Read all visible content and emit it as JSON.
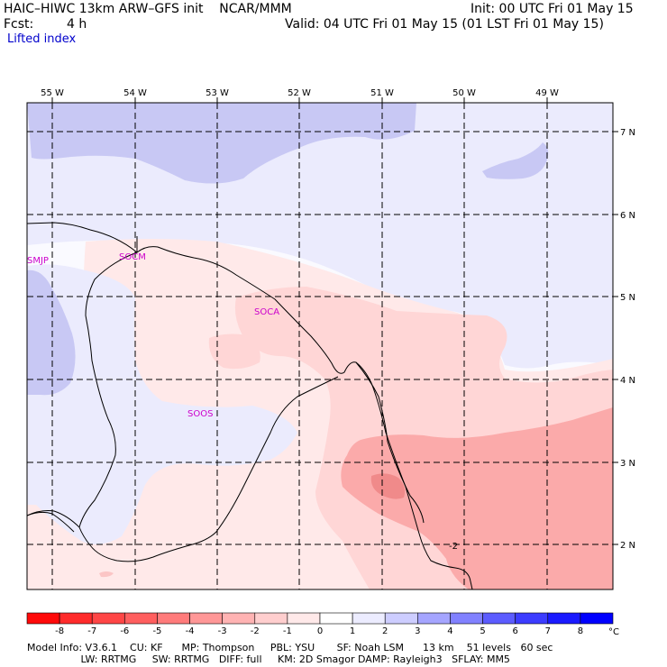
{
  "header": {
    "title": "HAIC–HIWC 13km ARW–GFS init    NCAR/MMM",
    "init": "Init: 00 UTC Fri 01 May 15",
    "fcst_label": "Fcst:",
    "fcst_value": "4 h",
    "valid": "Valid: 04 UTC Fri 01 May 15 (01 LST Fri 01 May 15)",
    "field": "Lifted index"
  },
  "map": {
    "lon_labels": [
      "55 W",
      "54 W",
      "53 W",
      "52 W",
      "51 W",
      "50 W",
      "49 W"
    ],
    "lat_labels": [
      "7 N",
      "6 N",
      "5 N",
      "4 N",
      "3 N",
      "2 N"
    ],
    "stations": [
      "SMJP",
      "SOCM",
      "SOCA",
      "SOOS"
    ],
    "contour_label": "-2",
    "colors": {
      "pos_strong": "#c8c8f4",
      "pos_light": "#ebebfd",
      "neutral": "#f9f9ff",
      "neg_light": "#ffe9e9",
      "neg_mid": "#ffd6d6",
      "neg_strong": "#fbaaaa",
      "neg_peak": "#f08a8a",
      "coast": "#000000",
      "station": "#cc00cc"
    }
  },
  "colorbar": {
    "ticks": [
      "-8",
      "-7",
      "-6",
      "-5",
      "-4",
      "-3",
      "-2",
      "-1",
      "0",
      "1",
      "2",
      "3",
      "4",
      "5",
      "6",
      "7",
      "8"
    ],
    "unit": "°C",
    "colors": [
      "#ff0a0a",
      "#ff2b2b",
      "#ff4646",
      "#ff5f5f",
      "#ff7b7b",
      "#ff9797",
      "#ffb3b3",
      "#ffcece",
      "#ffe9e9",
      "#ececff",
      "#cdcdff",
      "#a5a5ff",
      "#8181ff",
      "#5c5cff",
      "#3c3cff",
      "#1a1aff",
      "#0000ff"
    ]
  },
  "footer": {
    "line1": "Model Info: V3.6.1    CU: KF      MP: Thompson     PBL: YSU       SF: Noah LSM      13 km    51 levels   60 sec",
    "line2": "                 LW: RRTMG     SW: RRTMG   DIFF: full     KM: 2D Smagor DAMP: Rayleigh3   SFLAY: MM5"
  }
}
